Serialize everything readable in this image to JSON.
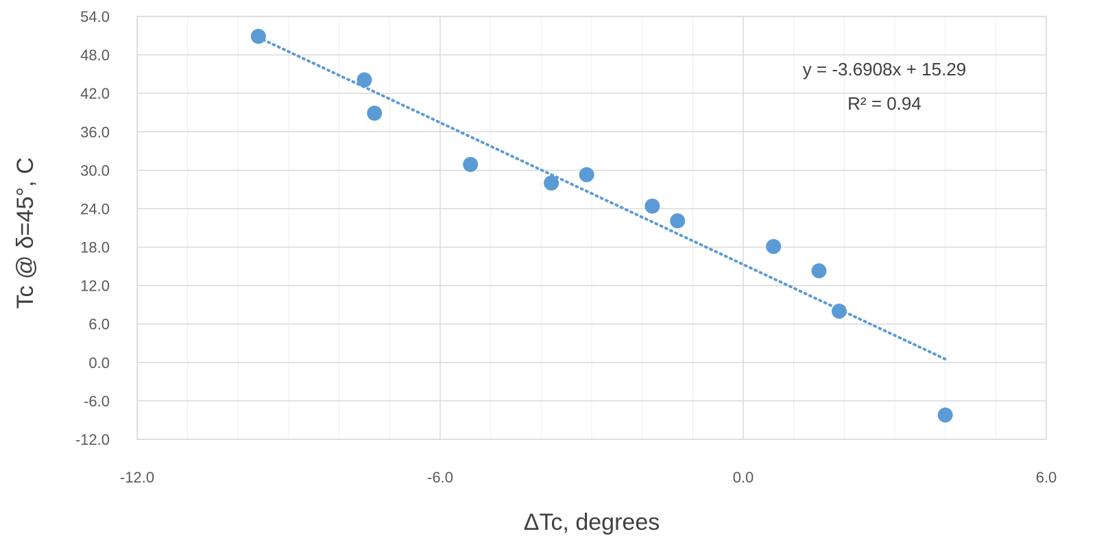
{
  "chart_data": {
    "type": "scatter",
    "xlabel": "ΔTc, degrees",
    "ylabel": "Tc @ δ=45°, C",
    "xlim": [
      -12,
      6
    ],
    "ylim": [
      -12,
      54
    ],
    "x_ticks": [
      "-12.0",
      "-6.0",
      "0.0",
      "6.0"
    ],
    "y_ticks": [
      "-12.0",
      "-6.0",
      "0.0",
      "6.0",
      "12.0",
      "18.0",
      "24.0",
      "30.0",
      "36.0",
      "42.0",
      "48.0",
      "54.0"
    ],
    "x_tick_values": [
      -12,
      -6,
      0,
      6
    ],
    "y_tick_values": [
      -12,
      -6,
      0,
      6,
      12,
      18,
      24,
      30,
      36,
      42,
      48,
      54
    ],
    "x_minor_step": 1,
    "grid": true,
    "point_color": "#5b9bd5",
    "trendline_color": "#5b9bd5",
    "series": [
      {
        "x": [
          -9.6,
          -7.5,
          -7.3,
          -5.4,
          -3.8,
          -3.1,
          -1.8,
          -1.3,
          0.6,
          1.5,
          1.9,
          4.0
        ],
        "y": [
          50.9,
          44.1,
          38.9,
          30.9,
          28.0,
          29.3,
          24.4,
          22.1,
          18.1,
          14.3,
          8.0,
          -8.2
        ]
      }
    ],
    "trendline": {
      "type": "linear",
      "slope": -3.6908,
      "intercept": 15.29,
      "x_range": [
        -9.6,
        4.0
      ],
      "style": "dotted"
    },
    "annotations": {
      "equation": "y = -3.6908x + 15.29",
      "r_squared": "R² = 0.94"
    }
  }
}
